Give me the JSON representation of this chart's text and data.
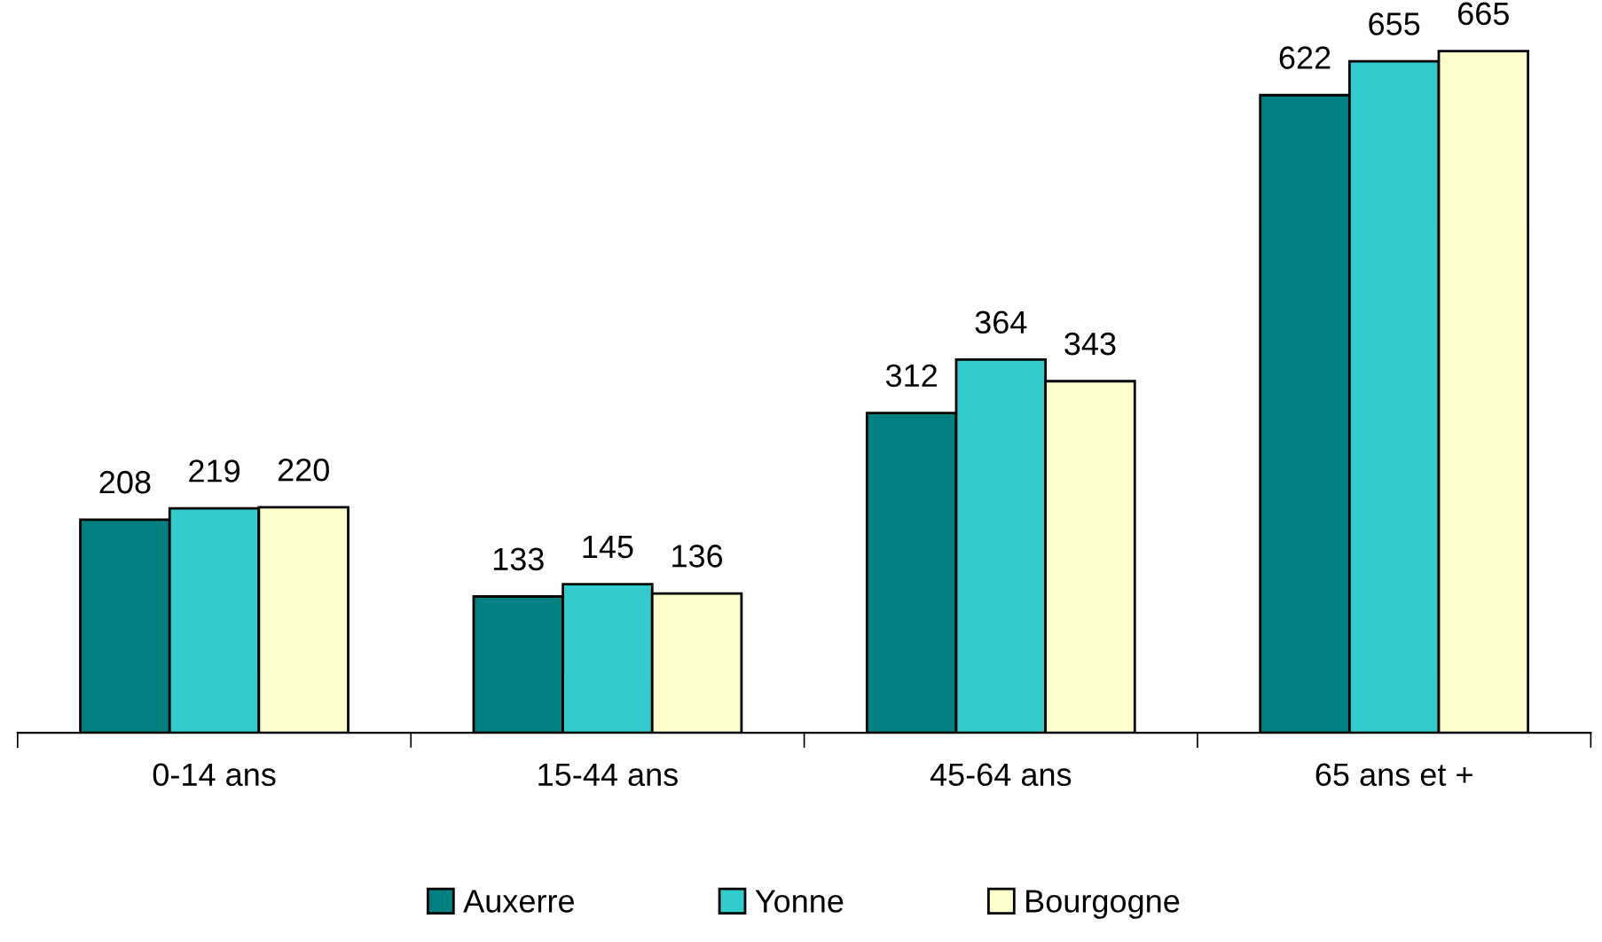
{
  "chart_data": {
    "type": "bar",
    "categories": [
      "0-14 ans",
      "15-44 ans",
      "45-64 ans",
      "65 ans et +"
    ],
    "series": [
      {
        "name": "Auxerre",
        "color": "#008080",
        "values": [
          208,
          133,
          312,
          622
        ]
      },
      {
        "name": "Yonne",
        "color": "#33cccc",
        "values": [
          219,
          145,
          364,
          655
        ]
      },
      {
        "name": "Bourgogne",
        "color": "#ffffcc",
        "values": [
          220,
          136,
          343,
          665
        ]
      }
    ],
    "data_labels": true,
    "legend": "bottom",
    "grid": false,
    "tick_labels": "x"
  }
}
